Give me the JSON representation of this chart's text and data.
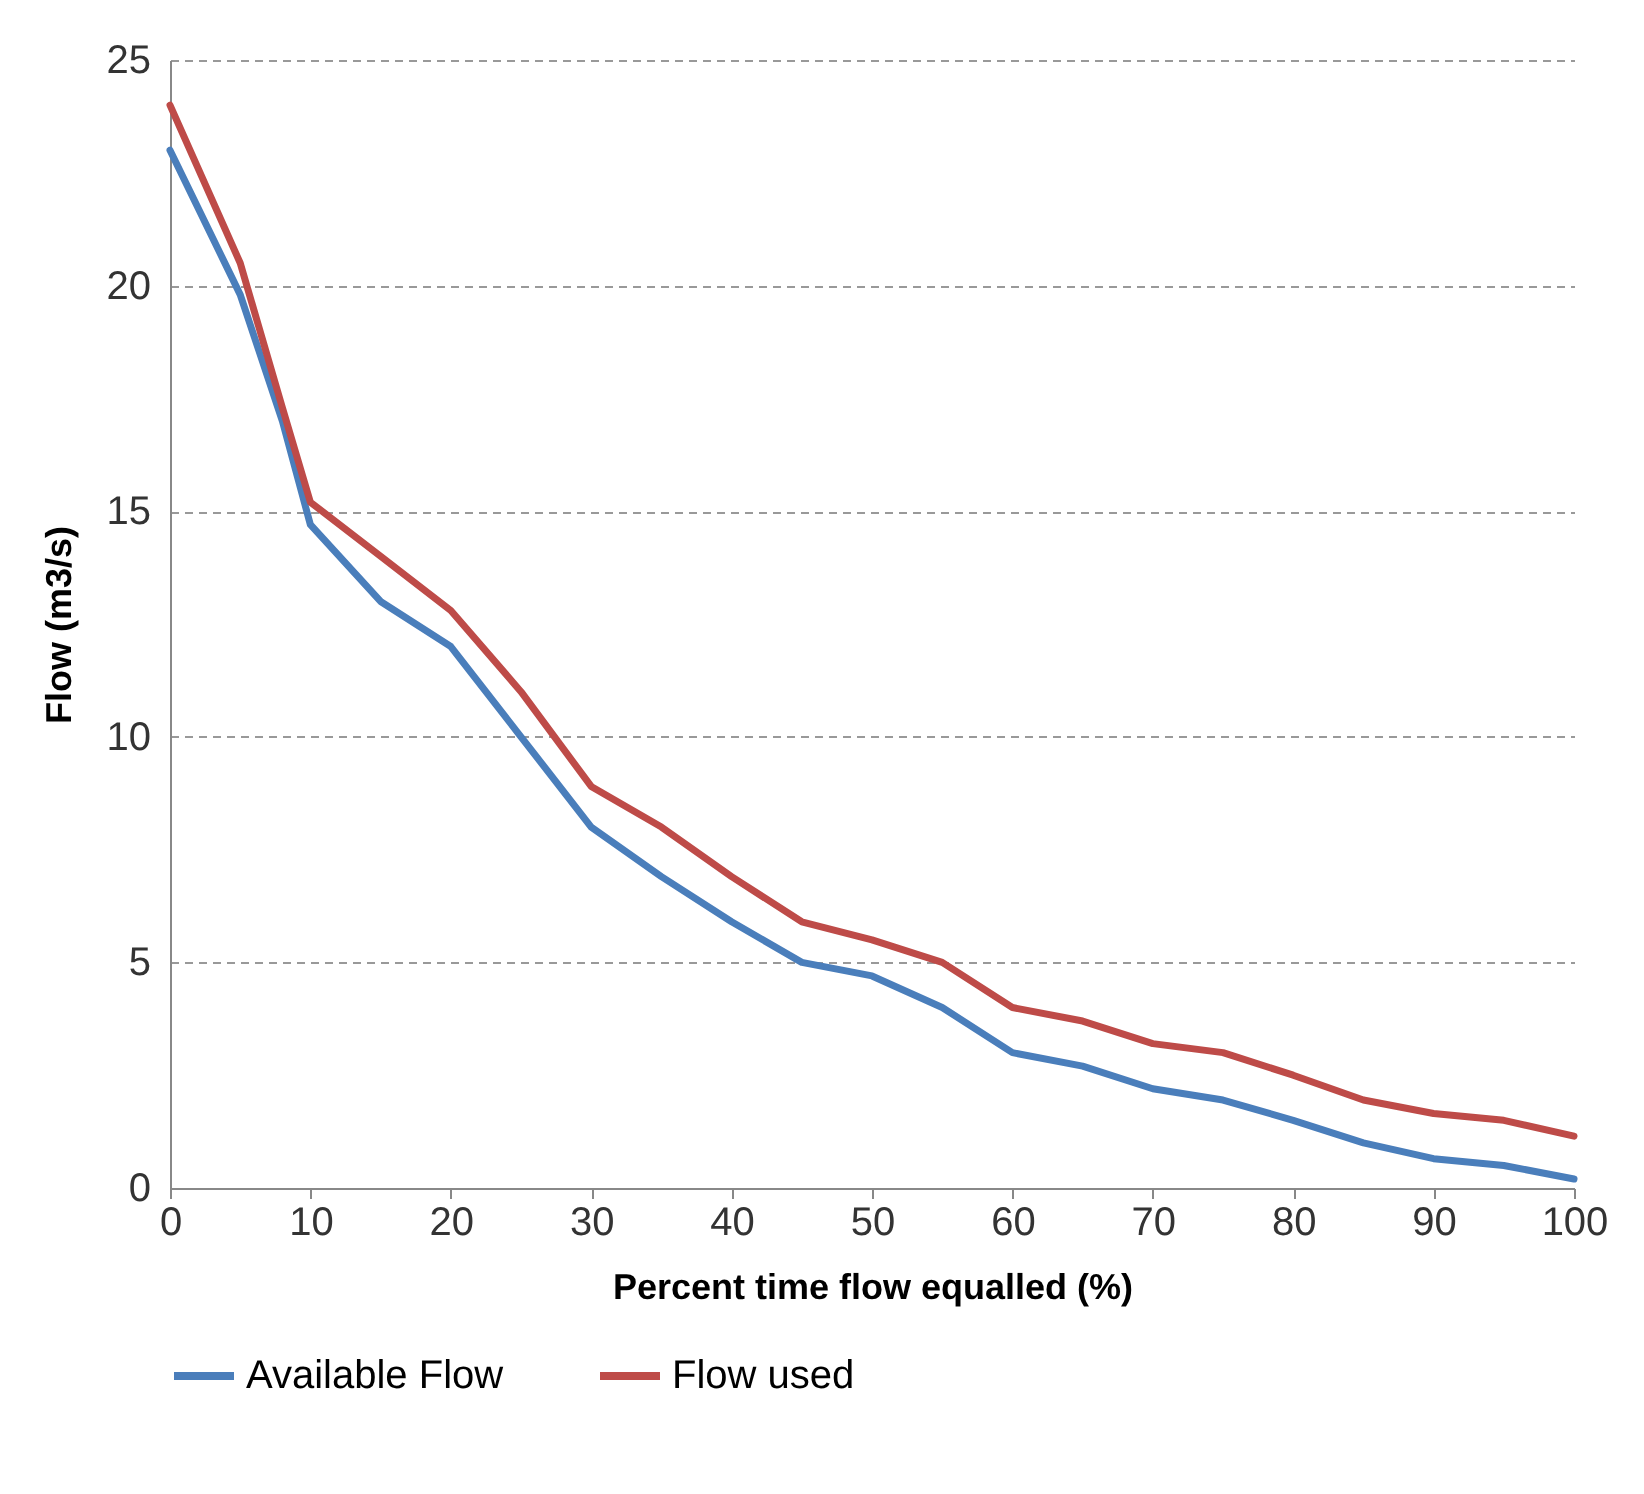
{
  "chart_data": {
    "type": "line",
    "xlabel": "Percent time flow equalled (%)",
    "ylabel": "Flow (m3/s)",
    "x": [
      0,
      5,
      8,
      10,
      15,
      20,
      25,
      30,
      35,
      40,
      45,
      50,
      55,
      60,
      65,
      70,
      75,
      80,
      85,
      90,
      95,
      100
    ],
    "series": [
      {
        "name": "Available Flow",
        "color": "#4a7ebb",
        "values": [
          23,
          19.8,
          17,
          14.7,
          13,
          12,
          10,
          8,
          6.9,
          5.9,
          5,
          4.7,
          4,
          3,
          2.7,
          2.2,
          1.95,
          1.5,
          1,
          0.65,
          0.5,
          0.2
        ]
      },
      {
        "name": "Flow used",
        "color": "#be4b48",
        "values": [
          24,
          20.5,
          17.3,
          15.2,
          14,
          12.8,
          11,
          8.9,
          8,
          6.9,
          5.9,
          5.5,
          5,
          4,
          3.7,
          3.2,
          3,
          2.5,
          1.95,
          1.65,
          1.5,
          1.15
        ]
      }
    ],
    "xlim": [
      0,
      100
    ],
    "xticks": [
      0,
      10,
      20,
      30,
      40,
      50,
      60,
      70,
      80,
      90,
      100
    ],
    "ylim": [
      0,
      25
    ],
    "yticks": [
      0,
      5,
      10,
      15,
      20,
      25
    ],
    "grid": "y",
    "legend": "bottom",
    "marker": "none",
    "line_style": "solid"
  }
}
